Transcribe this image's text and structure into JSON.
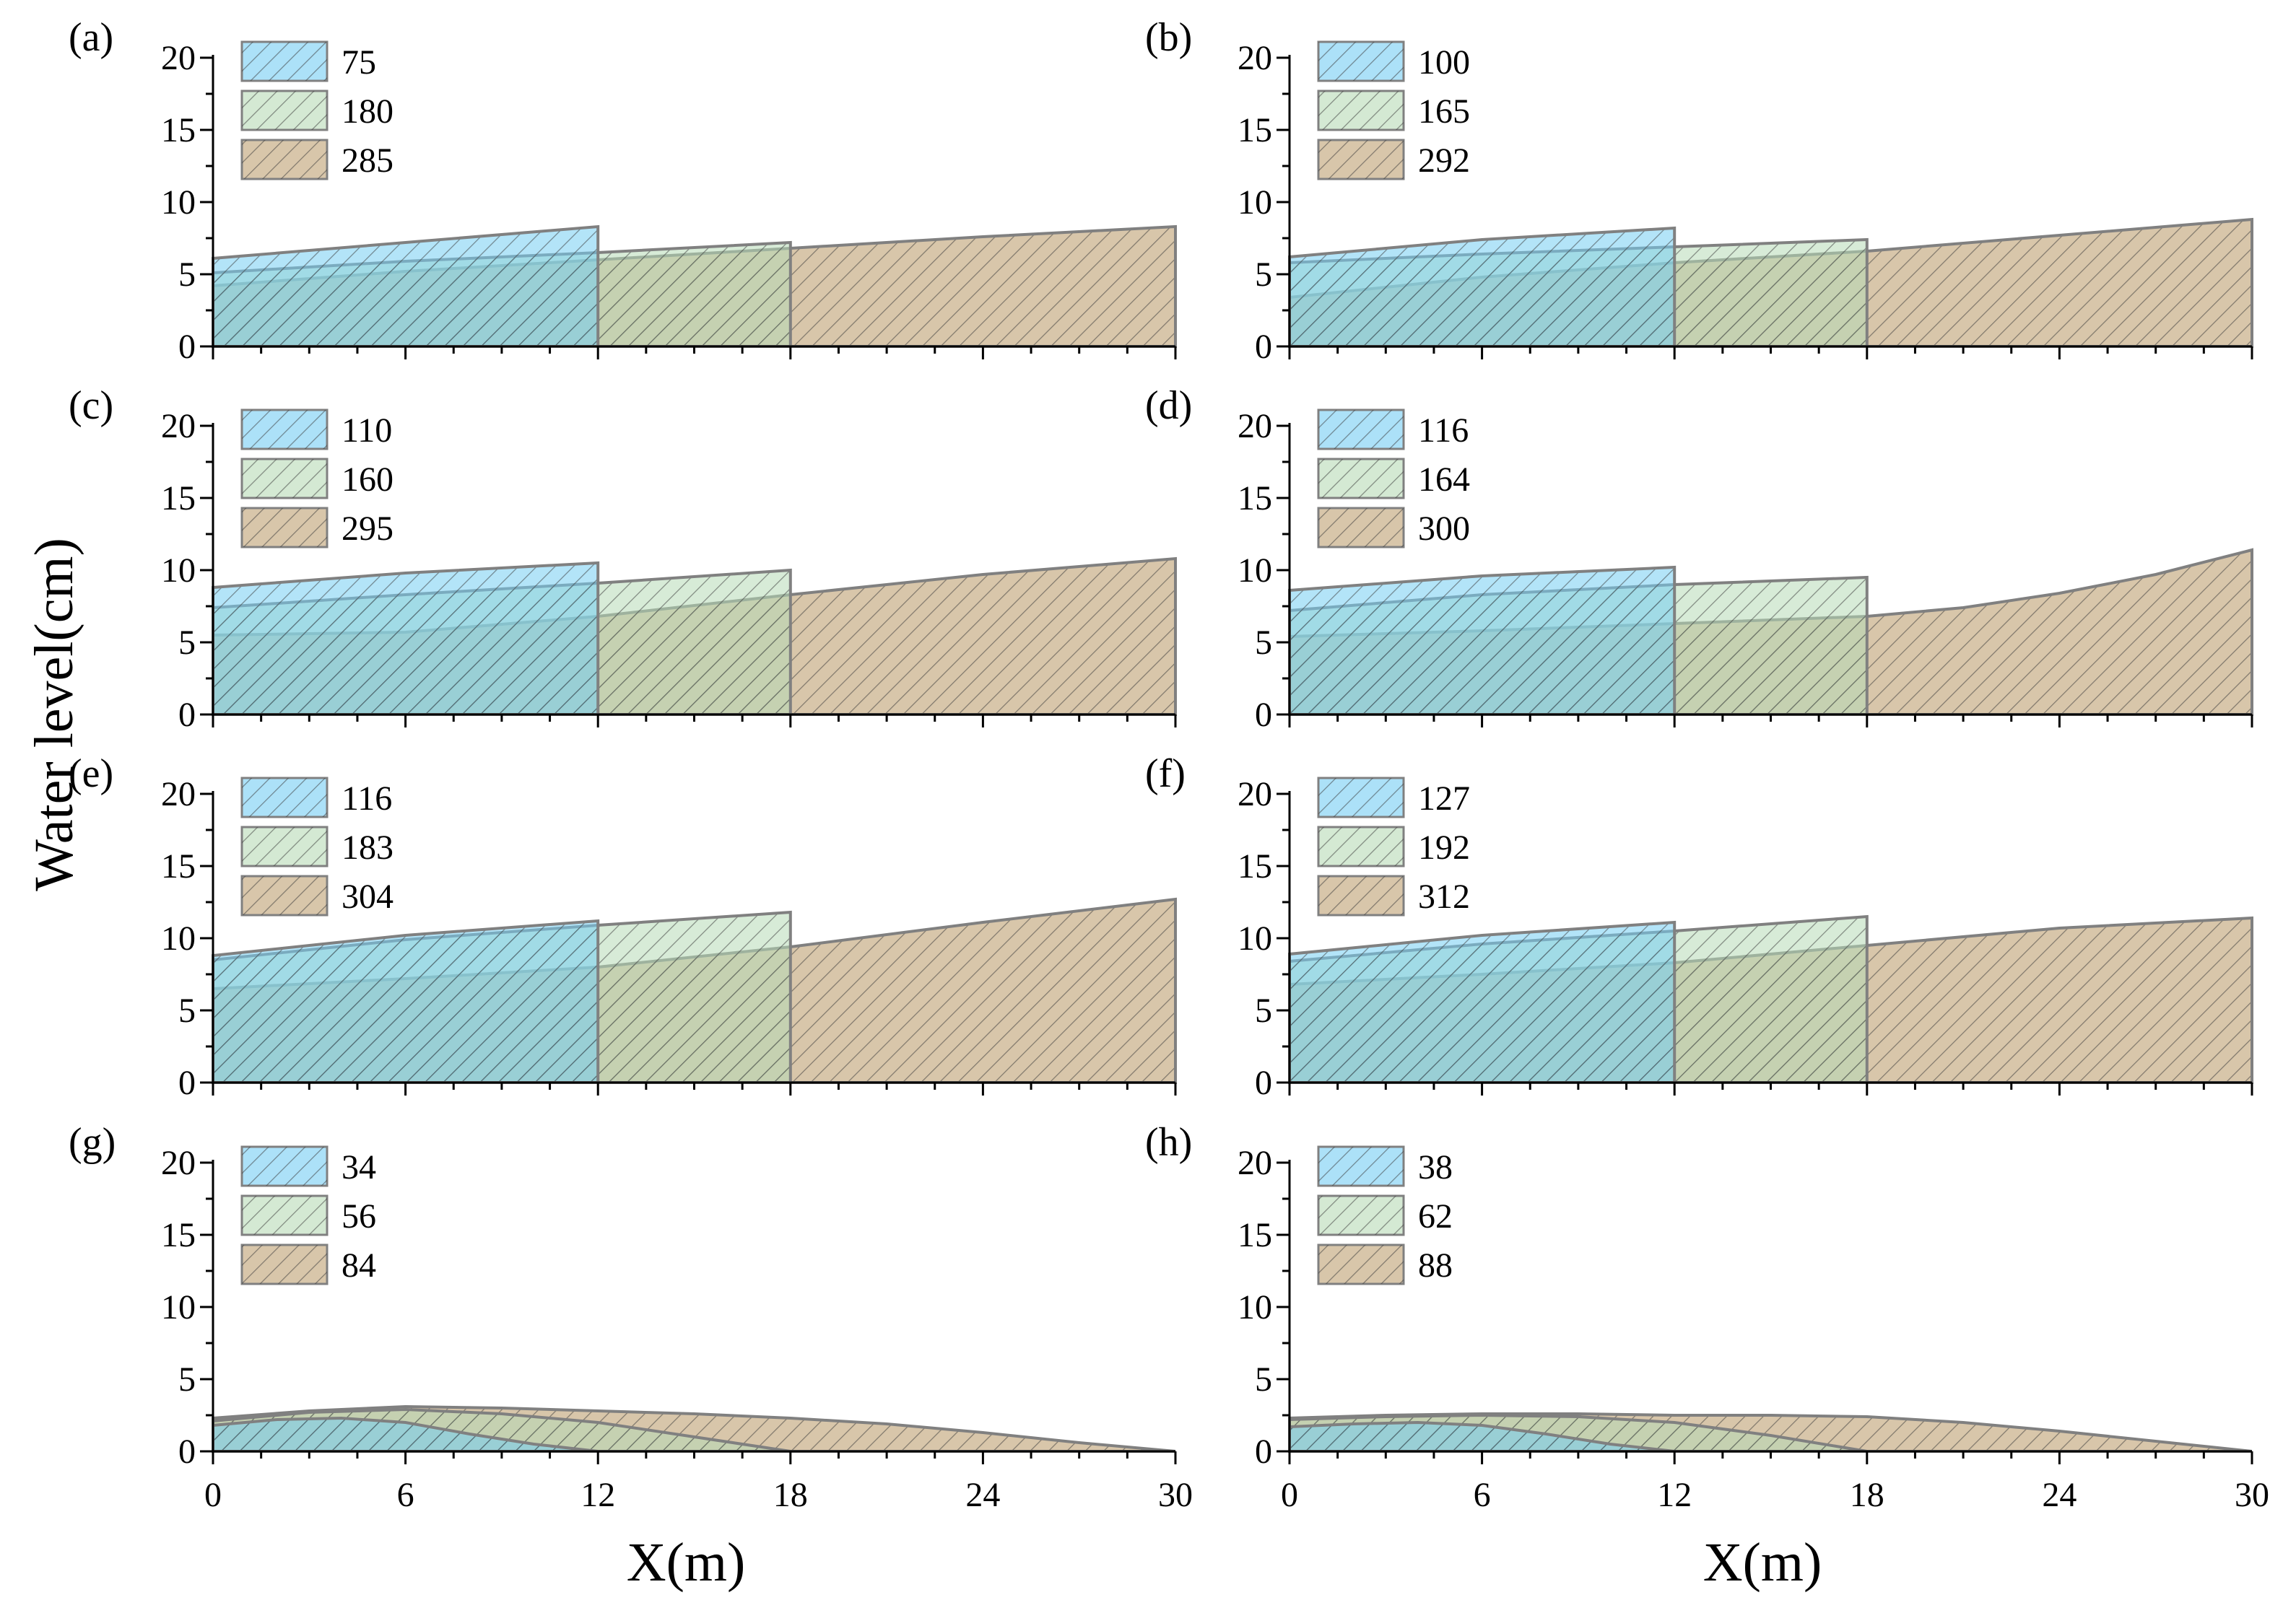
{
  "figure": {
    "ylabel": "Water level(cm)",
    "xlabel": "X(m)"
  },
  "chart_data": [
    {
      "panel": "(a)",
      "type": "area",
      "xlim": [
        0,
        30
      ],
      "ylim": [
        0,
        20
      ],
      "xticks": [
        "0",
        "6",
        "12",
        "18",
        "24",
        "30"
      ],
      "yticks": [
        "0",
        "5",
        "10",
        "15",
        "20"
      ],
      "series": [
        {
          "name": "285",
          "x": [
            0,
            6,
            12,
            18,
            24,
            30
          ],
          "y": [
            4.2,
            5.2,
            6.0,
            6.8,
            7.6,
            8.3
          ]
        },
        {
          "name": "180",
          "x": [
            0,
            6,
            12,
            18
          ],
          "y": [
            5.1,
            5.9,
            6.5,
            7.2
          ]
        },
        {
          "name": "75",
          "x": [
            0,
            6,
            12
          ],
          "y": [
            6.1,
            7.2,
            8.3
          ]
        }
      ]
    },
    {
      "panel": "(b)",
      "type": "area",
      "xlim": [
        0,
        30
      ],
      "ylim": [
        0,
        20
      ],
      "xticks": [
        "0",
        "6",
        "12",
        "18",
        "24",
        "30"
      ],
      "yticks": [
        "0",
        "5",
        "10",
        "15",
        "20"
      ],
      "series": [
        {
          "name": "292",
          "x": [
            0,
            6,
            12,
            18,
            24,
            30
          ],
          "y": [
            3.4,
            4.8,
            5.8,
            6.6,
            7.7,
            8.8
          ]
        },
        {
          "name": "165",
          "x": [
            0,
            6,
            12,
            18
          ],
          "y": [
            5.8,
            6.4,
            6.9,
            7.4
          ]
        },
        {
          "name": "100",
          "x": [
            0,
            6,
            12
          ],
          "y": [
            6.2,
            7.4,
            8.2
          ]
        }
      ]
    },
    {
      "panel": "(c)",
      "type": "area",
      "xlim": [
        0,
        30
      ],
      "ylim": [
        0,
        20
      ],
      "xticks": [
        "0",
        "6",
        "12",
        "18",
        "24",
        "30"
      ],
      "yticks": [
        "0",
        "5",
        "10",
        "15",
        "20"
      ],
      "series": [
        {
          "name": "295",
          "x": [
            0,
            6,
            12,
            18,
            24,
            30
          ],
          "y": [
            5.5,
            5.7,
            6.8,
            8.3,
            9.7,
            10.8
          ]
        },
        {
          "name": "160",
          "x": [
            0,
            6,
            12,
            18
          ],
          "y": [
            7.4,
            8.3,
            9.1,
            10.0
          ]
        },
        {
          "name": "110",
          "x": [
            0,
            6,
            12
          ],
          "y": [
            8.8,
            9.8,
            10.5
          ]
        }
      ]
    },
    {
      "panel": "(d)",
      "type": "area",
      "xlim": [
        0,
        30
      ],
      "ylim": [
        0,
        20
      ],
      "xticks": [
        "0",
        "6",
        "12",
        "18",
        "24",
        "30"
      ],
      "yticks": [
        "0",
        "5",
        "10",
        "15",
        "20"
      ],
      "series": [
        {
          "name": "300",
          "x": [
            0,
            6,
            12,
            18,
            21,
            24,
            27,
            30
          ],
          "y": [
            5.4,
            5.8,
            6.3,
            6.8,
            7.4,
            8.4,
            9.7,
            11.4
          ]
        },
        {
          "name": "164",
          "x": [
            0,
            6,
            12,
            18
          ],
          "y": [
            7.2,
            8.3,
            9.0,
            9.5
          ]
        },
        {
          "name": "116",
          "x": [
            0,
            6,
            12
          ],
          "y": [
            8.6,
            9.6,
            10.2
          ]
        }
      ]
    },
    {
      "panel": "(e)",
      "type": "area",
      "xlim": [
        0,
        30
      ],
      "ylim": [
        0,
        20
      ],
      "xticks": [
        "0",
        "6",
        "12",
        "18",
        "24",
        "30"
      ],
      "yticks": [
        "0",
        "5",
        "10",
        "15",
        "20"
      ],
      "series": [
        {
          "name": "304",
          "x": [
            0,
            6,
            12,
            18,
            24,
            30
          ],
          "y": [
            6.5,
            7.2,
            8.0,
            9.4,
            11.1,
            12.7
          ]
        },
        {
          "name": "183",
          "x": [
            0,
            6,
            12,
            18
          ],
          "y": [
            8.5,
            9.9,
            10.9,
            11.8
          ]
        },
        {
          "name": "116",
          "x": [
            0,
            6,
            12
          ],
          "y": [
            8.8,
            10.2,
            11.2
          ]
        }
      ]
    },
    {
      "panel": "(f)",
      "type": "area",
      "xlim": [
        0,
        30
      ],
      "ylim": [
        0,
        20
      ],
      "xticks": [
        "0",
        "6",
        "12",
        "18",
        "24",
        "30"
      ],
      "yticks": [
        "0",
        "5",
        "10",
        "15",
        "20"
      ],
      "series": [
        {
          "name": "312",
          "x": [
            0,
            6,
            12,
            18,
            24,
            30
          ],
          "y": [
            6.8,
            7.5,
            8.3,
            9.5,
            10.7,
            11.4
          ]
        },
        {
          "name": "192",
          "x": [
            0,
            6,
            12,
            18
          ],
          "y": [
            8.4,
            9.6,
            10.5,
            11.5
          ]
        },
        {
          "name": "127",
          "x": [
            0,
            6,
            12
          ],
          "y": [
            8.9,
            10.2,
            11.1
          ]
        }
      ]
    },
    {
      "panel": "(g)",
      "type": "area",
      "xlim": [
        0,
        30
      ],
      "ylim": [
        0,
        20
      ],
      "xticks": [
        "0",
        "6",
        "12",
        "18",
        "24",
        "30"
      ],
      "yticks": [
        "0",
        "5",
        "10",
        "15",
        "20"
      ],
      "series": [
        {
          "name": "84",
          "x": [
            0,
            3,
            6,
            9,
            12,
            15,
            18,
            21,
            24,
            27,
            30
          ],
          "y": [
            2.3,
            2.8,
            3.1,
            3.0,
            2.8,
            2.6,
            2.3,
            1.9,
            1.3,
            0.6,
            0.0
          ]
        },
        {
          "name": "56",
          "x": [
            0,
            3,
            6,
            9,
            12,
            15,
            18
          ],
          "y": [
            2.1,
            2.7,
            2.9,
            2.6,
            2.0,
            1.0,
            0.0
          ]
        },
        {
          "name": "34",
          "x": [
            0,
            2,
            4,
            6,
            8,
            10,
            12
          ],
          "y": [
            1.8,
            2.2,
            2.3,
            2.0,
            1.2,
            0.5,
            0.0
          ]
        }
      ]
    },
    {
      "panel": "(h)",
      "type": "area",
      "xlim": [
        0,
        30
      ],
      "ylim": [
        0,
        20
      ],
      "xticks": [
        "0",
        "6",
        "12",
        "18",
        "24",
        "30"
      ],
      "yticks": [
        "0",
        "5",
        "10",
        "15",
        "20"
      ],
      "series": [
        {
          "name": "88",
          "x": [
            0,
            3,
            6,
            9,
            12,
            15,
            18,
            21,
            24,
            27,
            30
          ],
          "y": [
            2.3,
            2.5,
            2.6,
            2.6,
            2.5,
            2.5,
            2.4,
            2.0,
            1.4,
            0.7,
            0.0
          ]
        },
        {
          "name": "62",
          "x": [
            0,
            3,
            6,
            9,
            12,
            15,
            18
          ],
          "y": [
            2.2,
            2.4,
            2.5,
            2.4,
            2.0,
            1.1,
            0.0
          ]
        },
        {
          "name": "38",
          "x": [
            0,
            2,
            4,
            6,
            8,
            10,
            12
          ],
          "y": [
            1.7,
            1.9,
            2.0,
            1.8,
            1.2,
            0.5,
            0.0
          ]
        }
      ]
    }
  ],
  "styles": {
    "fills": {
      "large": "#d6c3a5",
      "mid": "#b7dab6",
      "small": "#74cdf3"
    },
    "strokes": {
      "hatch": "#3a3a3a",
      "outline": "#808080",
      "axis": "#000000"
    }
  }
}
